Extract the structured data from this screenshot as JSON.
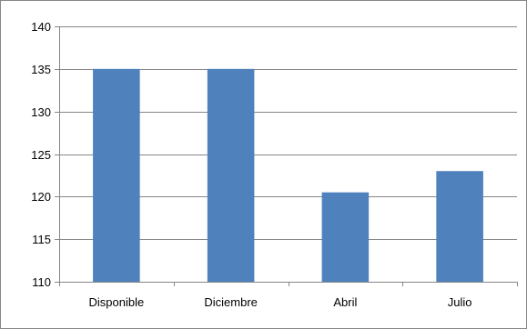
{
  "chart_data": {
    "type": "bar",
    "title": "",
    "xlabel": "",
    "ylabel": "",
    "categories": [
      "Disponible",
      "Diciembre",
      "Abril",
      "Julio"
    ],
    "values": [
      135,
      135,
      120.5,
      123
    ],
    "ylim": [
      110,
      140
    ],
    "yticks": [
      110,
      115,
      120,
      125,
      130,
      135,
      140
    ],
    "grid": true,
    "legend": "none",
    "colors": {
      "bar": "#4f81bd",
      "grid": "#868686",
      "axis": "#868686",
      "frame": "#868686"
    }
  }
}
